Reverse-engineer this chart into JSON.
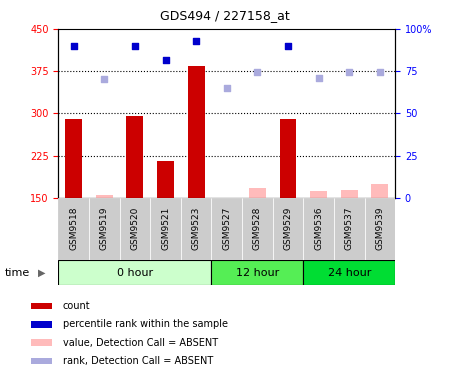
{
  "title": "GDS494 / 227158_at",
  "samples": [
    "GSM9518",
    "GSM9519",
    "GSM9520",
    "GSM9521",
    "GSM9523",
    "GSM9527",
    "GSM9528",
    "GSM9529",
    "GSM9536",
    "GSM9537",
    "GSM9539"
  ],
  "groups": [
    {
      "name": "0 hour",
      "span": [
        0,
        4
      ],
      "color": "#ccffcc"
    },
    {
      "name": "12 hour",
      "span": [
        5,
        7
      ],
      "color": "#55ee55"
    },
    {
      "name": "24 hour",
      "span": [
        8,
        10
      ],
      "color": "#00dd33"
    }
  ],
  "bar_values_present": [
    290,
    295,
    215,
    385,
    290
  ],
  "bar_x_present": [
    0,
    2,
    3,
    4,
    7
  ],
  "bar_values_absent": [
    155,
    150,
    168,
    162,
    163,
    175
  ],
  "bar_x_absent": [
    1,
    5,
    6,
    8,
    9,
    10
  ],
  "rank_present_x": [
    0,
    2,
    3,
    4,
    7
  ],
  "rank_present_y": [
    420,
    420,
    395,
    430,
    420
  ],
  "rank_absent_x": [
    1,
    5,
    6,
    8,
    9,
    10
  ],
  "rank_absent_y": [
    362,
    345,
    374,
    363,
    374,
    374
  ],
  "ylim_left": [
    150,
    450
  ],
  "ylim_right": [
    0,
    100
  ],
  "yticks_left": [
    150,
    225,
    300,
    375,
    450
  ],
  "yticks_right": [
    0,
    25,
    50,
    75,
    100
  ],
  "hlines": [
    225,
    300,
    375
  ],
  "bar_color_present": "#cc0000",
  "bar_color_absent": "#ffbbbb",
  "rank_color_present": "#0000cc",
  "rank_color_absent": "#aaaadd",
  "bar_width": 0.55,
  "time_label": "time",
  "legend_items": [
    {
      "label": "count",
      "color": "#cc0000"
    },
    {
      "label": "percentile rank within the sample",
      "color": "#0000cc"
    },
    {
      "label": "value, Detection Call = ABSENT",
      "color": "#ffbbbb"
    },
    {
      "label": "rank, Detection Call = ABSENT",
      "color": "#aaaadd"
    }
  ]
}
